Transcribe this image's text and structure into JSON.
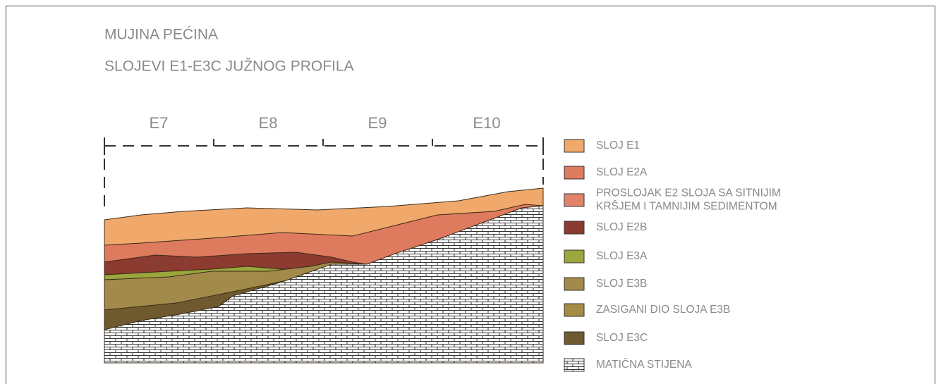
{
  "header": {
    "title": "MUJINA PEĆINA",
    "subtitle": "SLOJEVI E1-E3C JUŽNOG PROFILA"
  },
  "squares": [
    "E7",
    "E8",
    "E9",
    "E10"
  ],
  "legend": [
    {
      "lines": [
        "SLOJ E1"
      ],
      "color": "#f0a96b"
    },
    {
      "lines": [
        "SLOJ E2A"
      ],
      "color": "#de7a5d"
    },
    {
      "lines": [
        "PROSLOJAK E2 SLOJA SA SITNIJIM",
        "KRŠJEM I TAMNIJIM SEDIMENTOM"
      ],
      "color": "#e2846a"
    },
    {
      "lines": [
        "SLOJ E2B"
      ],
      "color": "#8b3b2f"
    },
    {
      "lines": [
        "SLOJ E3A"
      ],
      "color": "#9ba63c"
    },
    {
      "lines": [
        "SLOJ E3B"
      ],
      "color": "#a28a4a"
    },
    {
      "lines": [
        "ZASIGANI DIO SLOJA E3B"
      ],
      "color": "#a58c44"
    },
    {
      "lines": [
        "SLOJ E3C"
      ],
      "color": "#6f5a2f"
    },
    {
      "lines": [
        "MATIČNA STIJENA"
      ],
      "color": "pattern"
    }
  ]
}
